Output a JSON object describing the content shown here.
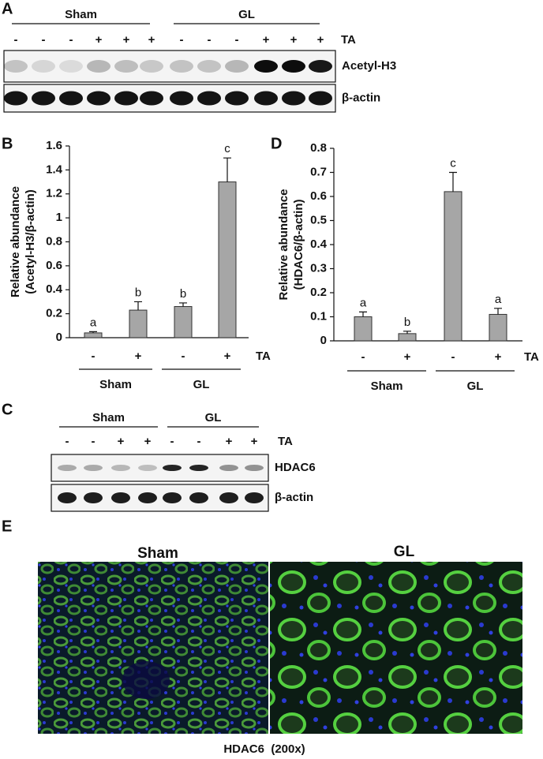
{
  "panel_a": {
    "label": "A",
    "groups": [
      "Sham",
      "GL"
    ],
    "ta_signs": [
      "-",
      "-",
      "-",
      "+",
      "+",
      "+",
      "-",
      "-",
      "-",
      "+",
      "+",
      "+"
    ],
    "ta_label": "TA",
    "bands": [
      "Acetyl-H3",
      "β-actin"
    ]
  },
  "chart_data": [
    {
      "type": "bar",
      "label": "B",
      "y_label": [
        "Relative abundance",
        "(Acetyl-H3/β-actin)"
      ],
      "categories": [
        "-",
        "+",
        "-",
        "+"
      ],
      "groups": [
        "Sham",
        "GL"
      ],
      "x_label": "TA",
      "values": [
        0.04,
        0.23,
        0.26,
        1.3
      ],
      "errors": [
        0.01,
        0.07,
        0.03,
        0.2
      ],
      "annotations": [
        "a",
        "b",
        "b",
        "c"
      ],
      "color": "#a6a6a6",
      "ylim": [
        0,
        1.6
      ],
      "yticks": [
        0,
        0.2,
        0.4,
        0.6,
        0.8,
        1,
        1.2,
        1.4,
        1.6
      ],
      "grid": false
    },
    {
      "type": "bar",
      "label": "D",
      "y_label": [
        "Relative abundance",
        "(HDAC6/β-actin)"
      ],
      "categories": [
        "-",
        "+",
        "-",
        "+"
      ],
      "groups": [
        "Sham",
        "GL"
      ],
      "x_label": "TA",
      "values": [
        0.1,
        0.03,
        0.62,
        0.11
      ],
      "errors": [
        0.02,
        0.01,
        0.08,
        0.025
      ],
      "annotations": [
        "a",
        "b",
        "c",
        "a"
      ],
      "color": "#a6a6a6",
      "ylim": [
        0,
        0.8
      ],
      "yticks": [
        0,
        0.1,
        0.2,
        0.3,
        0.4,
        0.5,
        0.6,
        0.7,
        0.8
      ],
      "grid": false
    }
  ],
  "panel_c": {
    "label": "C",
    "groups": [
      "Sham",
      "GL"
    ],
    "ta_signs": [
      "-",
      "-",
      "+",
      "+",
      "-",
      "-",
      "+",
      "+"
    ],
    "ta_label": "TA",
    "bands": [
      "HDAC6",
      "β-actin"
    ]
  },
  "panel_e": {
    "label": "E",
    "images": [
      "Sham",
      "GL"
    ],
    "caption": "HDAC6  (200x)"
  }
}
